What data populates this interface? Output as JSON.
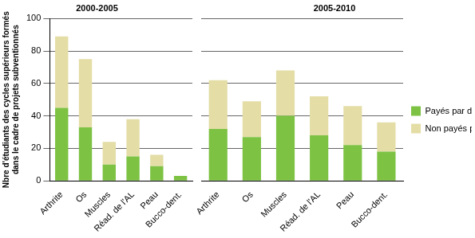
{
  "chart_data": [
    {
      "type": "bar",
      "title": "2000-2005",
      "ylabel": [
        "Nbre d'étudiants des cycles supérieurs formés",
        "dans le cadre de projets subventionnés"
      ],
      "categories": [
        "Arthrite",
        "Os",
        "Muscles",
        "Réad. de l'AL",
        "Peau",
        "Bucco-dent."
      ],
      "series": [
        {
          "name": "Payés par des subventions",
          "color": "#7dc243",
          "values": [
            45,
            33,
            10,
            15,
            9,
            3
          ]
        },
        {
          "name": "Non payés par des subventions",
          "color": "#e4dda6",
          "values": [
            44,
            42,
            14,
            23,
            7,
            0
          ]
        }
      ],
      "ylim": [
        0,
        100
      ],
      "yticks": [
        0,
        20,
        40,
        60,
        80,
        100
      ],
      "stacked": true,
      "grid": true
    },
    {
      "type": "bar",
      "title": "2005-2010",
      "categories": [
        "Arthrite",
        "Os",
        "Muscles",
        "Réad. de l'AL",
        "Peau",
        "Bucco-dent."
      ],
      "series": [
        {
          "name": "Payés par des subventions",
          "color": "#7dc243",
          "values": [
            32,
            27,
            40,
            28,
            22,
            18
          ]
        },
        {
          "name": "Non payés par des subventions",
          "color": "#e4dda6",
          "values": [
            30,
            22,
            28,
            24,
            24,
            18
          ]
        }
      ],
      "ylim": [
        0,
        100
      ],
      "yticks": [
        0,
        20,
        40,
        60,
        80,
        100
      ],
      "stacked": true,
      "grid": true,
      "legend": "right",
      "tick_labels": "x"
    }
  ]
}
